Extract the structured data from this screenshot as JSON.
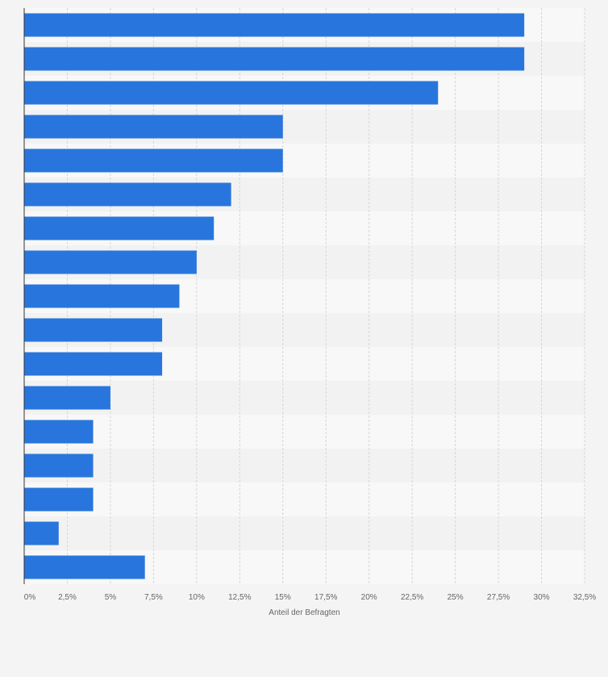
{
  "chart_data": {
    "type": "bar",
    "orientation": "horizontal",
    "title": "",
    "xlabel": "Anteil der Befragten",
    "ylabel": "",
    "xlim": [
      0,
      32.5
    ],
    "x_ticks": [
      0,
      2.5,
      5,
      7.5,
      10,
      12.5,
      15,
      17.5,
      20,
      22.5,
      25,
      27.5,
      30,
      32.5
    ],
    "x_tick_labels": [
      "0%",
      "2,5%",
      "5%",
      "7,5%",
      "10%",
      "12,5%",
      "15%",
      "17,5%",
      "20%",
      "22,5%",
      "25%",
      "27,5%",
      "30%",
      "32,5%"
    ],
    "categories": [
      "",
      "",
      "",
      "",
      "",
      "",
      "",
      "",
      "",
      "",
      "",
      "",
      "",
      "",
      "",
      "",
      ""
    ],
    "values": [
      29,
      29,
      24,
      15,
      15,
      12,
      11,
      10,
      9,
      8,
      8,
      5,
      4,
      4,
      4,
      2,
      7
    ],
    "grid": true,
    "colors": {
      "bar": "#2876dd",
      "background": "#f4f4f4",
      "plot_band_light": "#f8f8f8",
      "plot_band_dark": "#f2f2f2",
      "grid": "#d6d6d6",
      "axis": "#333333",
      "text": "#666666"
    }
  }
}
